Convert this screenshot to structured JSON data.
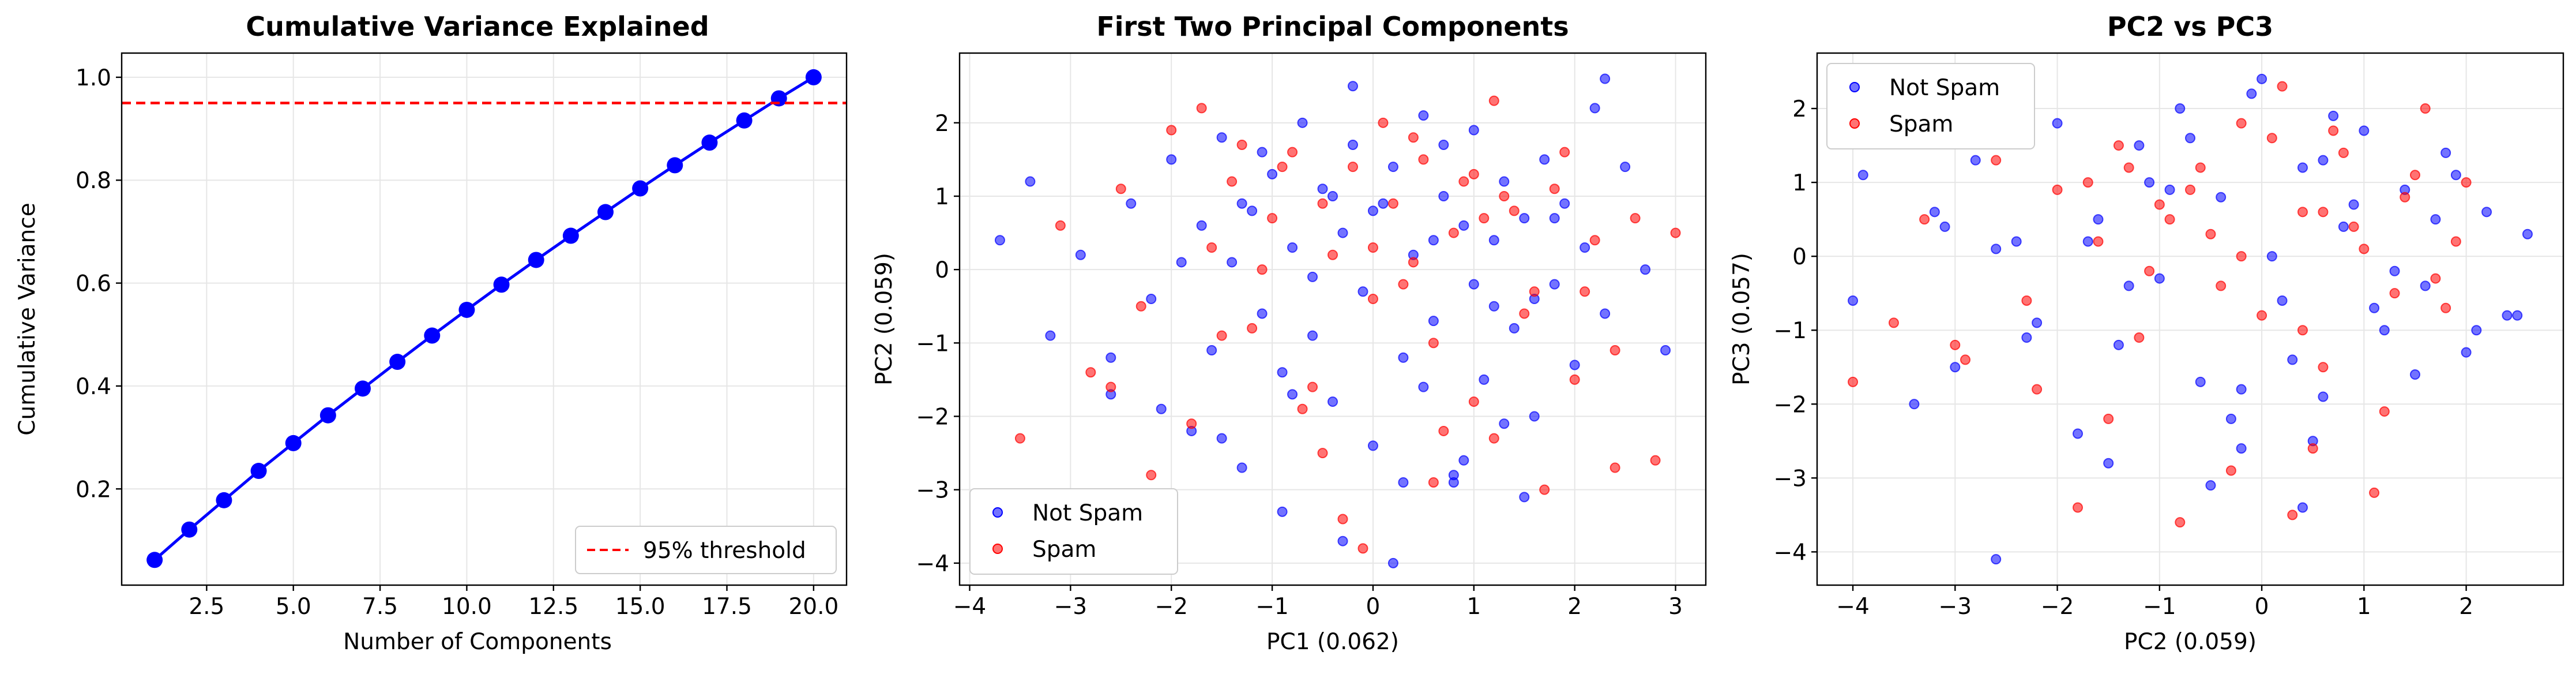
{
  "colors": {
    "line": "#0000ff",
    "threshold": "#ff0000",
    "not_spam": "#0000ff",
    "spam": "#ff0000",
    "grid": "#e6e6e6"
  },
  "chart_data": [
    {
      "type": "line",
      "title": "Cumulative Variance Explained",
      "xlabel": "Number of Components",
      "ylabel": "Cumulative Variance",
      "xlim": [
        0.05,
        20.95
      ],
      "ylim": [
        0.013,
        1.047
      ],
      "xticks": [
        2.5,
        5.0,
        7.5,
        10.0,
        12.5,
        15.0,
        17.5,
        20.0
      ],
      "xtick_labels": [
        "2.5",
        "5.0",
        "7.5",
        "10.0",
        "12.5",
        "15.0",
        "17.5",
        "20.0"
      ],
      "yticks": [
        0.2,
        0.4,
        0.6,
        0.8,
        1.0
      ],
      "ytick_labels": [
        "0.2",
        "0.4",
        "0.6",
        "0.8",
        "1.0"
      ],
      "grid": true,
      "legend_position": "lower-right",
      "series": [
        {
          "x": [
            1,
            2,
            3,
            4,
            5,
            6,
            7,
            8,
            9,
            10,
            11,
            12,
            13,
            14,
            15,
            16,
            17,
            18,
            19,
            20
          ],
          "y": [
            0.062,
            0.121,
            0.178,
            0.235,
            0.289,
            0.343,
            0.395,
            0.447,
            0.498,
            0.548,
            0.597,
            0.645,
            0.692,
            0.738,
            0.784,
            0.829,
            0.873,
            0.916,
            0.959,
            1.0
          ]
        }
      ],
      "hlines": [
        {
          "y": 0.95,
          "label": "95% threshold",
          "style": "dashed"
        }
      ]
    },
    {
      "type": "scatter",
      "title": "First Two Principal Components",
      "xlabel": "PC1 (0.062)",
      "ylabel": "PC2 (0.059)",
      "xlim": [
        -4.1,
        3.3
      ],
      "ylim": [
        -4.3,
        2.95
      ],
      "xticks": [
        -4,
        -3,
        -2,
        -1,
        0,
        1,
        2,
        3
      ],
      "xtick_labels": [
        "−4",
        "−3",
        "−2",
        "−1",
        "0",
        "1",
        "2",
        "3"
      ],
      "yticks": [
        -4,
        -3,
        -2,
        -1,
        0,
        1,
        2
      ],
      "ytick_labels": [
        "−4",
        "−3",
        "−2",
        "−1",
        "0",
        "1",
        "2"
      ],
      "grid": true,
      "legend_position": "lower-left",
      "series": [
        {
          "name": "Not Spam",
          "x": [
            -3.7,
            -3.4,
            -3.2,
            -2.9,
            -2.6,
            -2.4,
            -2.2,
            -2.0,
            -1.8,
            -1.7,
            -1.6,
            -1.5,
            -1.4,
            -1.3,
            -1.2,
            -1.1,
            -1.0,
            -0.9,
            -0.8,
            -0.7,
            -0.6,
            -0.5,
            -0.4,
            -0.3,
            -0.2,
            -0.1,
            0.0,
            0.1,
            0.2,
            0.3,
            0.4,
            0.5,
            0.6,
            0.7,
            0.8,
            0.9,
            1.0,
            1.1,
            1.2,
            1.3,
            1.4,
            1.5,
            1.6,
            1.7,
            1.8,
            1.9,
            2.0,
            2.1,
            2.2,
            2.3,
            2.5,
            2.7,
            2.9,
            -0.9,
            -0.3,
            0.3,
            0.9,
            1.5,
            -1.5,
            -0.6,
            0.6,
            1.2,
            -2.1,
            2.3,
            -1.1,
            0.0,
            1.0,
            -0.4,
            0.5,
            1.8,
            -1.9,
            -2.6,
            0.2,
            0.8,
            -0.8,
            1.3,
            -0.2,
            0.7,
            -1.3,
            1.6
          ],
          "y": [
            0.4,
            1.2,
            -0.9,
            0.2,
            -1.7,
            0.9,
            -0.4,
            1.5,
            -2.2,
            0.6,
            -1.1,
            1.8,
            0.1,
            -2.7,
            0.8,
            -0.6,
            1.3,
            -1.4,
            0.3,
            2.0,
            -0.9,
            1.1,
            -1.8,
            0.5,
            1.7,
            -0.3,
            -2.4,
            0.9,
            1.4,
            -1.2,
            0.2,
            2.1,
            -0.7,
            1.0,
            -2.9,
            0.6,
            1.9,
            -1.5,
            0.4,
            1.2,
            -0.8,
            0.7,
            -2.0,
            1.5,
            -0.2,
            0.9,
            -1.3,
            0.3,
            2.2,
            -0.6,
            1.4,
            0.0,
            -1.1,
            -3.3,
            -3.7,
            -2.9,
            -2.6,
            -3.1,
            -2.3,
            -0.1,
            0.4,
            -0.5,
            -1.9,
            2.6,
            1.6,
            0.8,
            -0.2,
            1.0,
            -1.6,
            0.7,
            0.1,
            -1.2,
            -4.0,
            -2.8,
            -1.7,
            -2.1,
            2.5,
            1.7,
            0.9,
            -0.4
          ]
        },
        {
          "name": "Spam",
          "x": [
            -3.1,
            -2.8,
            -2.5,
            -2.3,
            -2.0,
            -1.8,
            -1.6,
            -1.4,
            -1.2,
            -1.0,
            -0.8,
            -0.6,
            -0.4,
            -0.2,
            0.0,
            0.2,
            0.4,
            0.6,
            0.8,
            1.0,
            1.2,
            1.4,
            1.6,
            1.8,
            2.0,
            2.2,
            2.4,
            2.6,
            2.8,
            3.0,
            -1.5,
            -0.5,
            0.5,
            1.5,
            -1.1,
            0.1,
            1.1,
            -0.7,
            0.9,
            1.7,
            -2.2,
            -0.3,
            0.7,
            1.3,
            -0.9,
            0.3,
            2.1,
            -1.7,
            -3.5,
            1.9,
            -0.1,
            0.6,
            -1.3,
            1.0,
            0.0,
            -2.6,
            2.4,
            1.2,
            -0.5,
            0.4
          ],
          "y": [
            0.6,
            -1.4,
            1.1,
            -0.5,
            1.9,
            -2.1,
            0.3,
            1.2,
            -0.8,
            0.7,
            1.6,
            -1.6,
            0.2,
            1.4,
            -0.4,
            0.9,
            1.8,
            -1.0,
            0.5,
            1.3,
            -2.3,
            0.8,
            -0.3,
            1.1,
            -1.5,
            0.4,
            -1.1,
            0.7,
            -2.6,
            0.5,
            -0.9,
            0.9,
            1.5,
            -0.6,
            0.0,
            2.0,
            0.7,
            -1.9,
            1.2,
            -3.0,
            -2.8,
            -3.4,
            -2.2,
            1.0,
            1.4,
            -0.2,
            -0.3,
            2.2,
            -2.3,
            1.6,
            -3.8,
            -2.9,
            1.7,
            -1.8,
            0.3,
            -1.6,
            -2.7,
            2.3,
            -2.5,
            0.1
          ]
        }
      ]
    },
    {
      "type": "scatter",
      "title": "PC2 vs PC3",
      "xlabel": "PC2 (0.059)",
      "ylabel": "PC3 (0.057)",
      "xlim": [
        -4.35,
        2.95
      ],
      "ylim": [
        -4.45,
        2.75
      ],
      "xticks": [
        -4,
        -3,
        -2,
        -1,
        0,
        1,
        2
      ],
      "xtick_labels": [
        "−4",
        "−3",
        "−2",
        "−1",
        "0",
        "1",
        "2"
      ],
      "yticks": [
        -4,
        -3,
        -2,
        -1,
        0,
        1,
        2
      ],
      "ytick_labels": [
        "−4",
        "−3",
        "−2",
        "−1",
        "0",
        "1",
        "2"
      ],
      "grid": true,
      "legend_position": "upper-left",
      "series": [
        {
          "name": "Not Spam",
          "x": [
            -4.0,
            -3.9,
            -3.4,
            -3.2,
            -3.0,
            -2.8,
            -2.6,
            -2.4,
            -2.2,
            -2.0,
            -1.8,
            -1.6,
            -1.4,
            -1.2,
            -1.0,
            -0.8,
            -0.6,
            -0.4,
            -0.2,
            0.0,
            0.2,
            0.4,
            0.6,
            0.8,
            1.0,
            1.2,
            1.4,
            1.6,
            1.8,
            2.0,
            2.2,
            2.4,
            2.6,
            -1.5,
            -0.5,
            0.5,
            1.5,
            -1.1,
            0.1,
            1.1,
            -0.7,
            0.9,
            -2.6,
            -0.3,
            0.7,
            1.3,
            -0.9,
            0.3,
            2.1,
            -1.7,
            -3.1,
            1.9,
            -0.1,
            -2.3,
            1.7,
            0.4,
            -1.3,
            0.6,
            -0.2,
            2.5
          ],
          "y": [
            -0.6,
            1.1,
            -2.0,
            0.6,
            -1.5,
            1.3,
            -4.1,
            0.2,
            -0.9,
            1.8,
            -2.4,
            0.5,
            -1.2,
            1.5,
            -0.3,
            2.0,
            -1.7,
            0.8,
            -2.6,
            2.4,
            -0.6,
            1.2,
            -1.9,
            0.4,
            1.7,
            -1.0,
            0.9,
            -0.4,
            1.4,
            -1.3,
            0.6,
            -0.8,
            0.3,
            -2.8,
            -3.1,
            -2.5,
            -1.6,
            1.0,
            0.0,
            -0.7,
            1.6,
            0.7,
            0.1,
            -2.2,
            1.9,
            -0.2,
            0.9,
            -1.4,
            -1.0,
            0.2,
            0.4,
            1.1,
            2.2,
            -1.1,
            0.5,
            -3.4,
            -0.4,
            1.3,
            -1.8,
            -0.8
          ]
        },
        {
          "name": "Spam",
          "x": [
            -4.0,
            -3.6,
            -3.3,
            -2.9,
            -2.6,
            -2.3,
            -2.0,
            -1.8,
            -1.6,
            -1.4,
            -1.2,
            -1.0,
            -0.8,
            -0.6,
            -0.4,
            -0.2,
            0.0,
            0.2,
            0.4,
            0.6,
            0.8,
            1.0,
            1.2,
            1.4,
            1.6,
            1.8,
            2.0,
            -1.5,
            -0.5,
            0.5,
            1.5,
            -1.1,
            0.1,
            1.1,
            -0.7,
            0.9,
            -2.2,
            -0.3,
            0.7,
            1.3,
            -0.9,
            0.3,
            1.9,
            -1.7,
            -3.0,
            0.4,
            -1.3,
            0.6,
            -0.2,
            1.7
          ],
          "y": [
            -1.7,
            -0.9,
            0.5,
            -1.4,
            1.3,
            -0.6,
            0.9,
            -3.4,
            0.2,
            1.5,
            -1.1,
            0.7,
            -3.6,
            1.2,
            -0.4,
            1.8,
            -0.8,
            2.3,
            0.6,
            -1.5,
            1.4,
            0.1,
            -2.1,
            0.8,
            2.0,
            -0.7,
            1.0,
            -2.2,
            0.3,
            -2.6,
            1.1,
            -0.2,
            1.6,
            -3.2,
            0.9,
            0.4,
            -1.8,
            -2.9,
            1.7,
            -0.5,
            0.5,
            -3.5,
            0.2,
            1.0,
            -1.2,
            -1.0,
            1.2,
            0.6,
            0.0,
            -0.3
          ]
        }
      ]
    }
  ]
}
